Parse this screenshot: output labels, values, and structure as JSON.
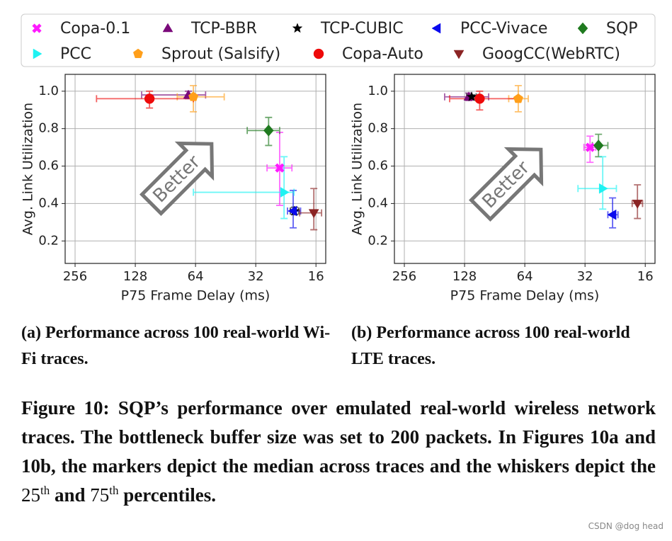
{
  "legend": [
    {
      "name": "Copa-0.1",
      "color": "#ff1aff",
      "marker": "X"
    },
    {
      "name": "TCP-BBR",
      "color": "#7a0a7a",
      "marker": "^"
    },
    {
      "name": "TCP-CUBIC",
      "color": "#000000",
      "marker": "*"
    },
    {
      "name": "PCC-Vivace",
      "color": "#0a0aee",
      "marker": "<"
    },
    {
      "name": "SQP",
      "color": "#1f7a1f",
      "marker": "D"
    },
    {
      "name": "PCC",
      "color": "#1ff2f2",
      "marker": ">"
    },
    {
      "name": "Sprout (Salsify)",
      "color": "#ff9f1a",
      "marker": "p"
    },
    {
      "name": "Copa-Auto",
      "color": "#ee0a0a",
      "marker": "o"
    },
    {
      "name": "GoogCC(WebRTC)",
      "color": "#8b2424",
      "marker": "v"
    }
  ],
  "chart_data": [
    {
      "type": "scatter",
      "xlabel": "P75 Frame Delay (ms)",
      "ylabel": "Avg. Link Utilization",
      "annotation": "Better",
      "subcaption": "(a) Performance across 100 real-world Wi-Fi traces.",
      "xscale": "log2",
      "xlim": [
        287,
        14.3
      ],
      "xticks": [
        256,
        128,
        64,
        32,
        16
      ],
      "ylim": [
        0.08,
        1.09
      ],
      "yticks": [
        0.2,
        0.4,
        0.6,
        0.8,
        {
          "value": 1,
          "label": "1.0"
        }
      ],
      "grid": true,
      "series": [
        {
          "x": 24.3,
          "xerr": [
            28.1,
            21.1
          ],
          "y": 0.59,
          "yerr": [
            0.39,
            0.78
          ]
        },
        {
          "x": 69.5,
          "xerr": [
            119,
            57
          ],
          "y": 0.98,
          "yerr": [
            0.96,
            1.0
          ]
        },
        {
          "x": 20.5,
          "xerr": [
            21.5,
            19.5
          ],
          "y": 0.36,
          "yerr": [
            0.34,
            0.38
          ]
        },
        {
          "x": 20.8,
          "xerr": [
            22.2,
            19.1
          ],
          "y": 0.36,
          "yerr": [
            0.27,
            0.47
          ]
        },
        {
          "x": 27.6,
          "xerr": [
            35.3,
            24.3
          ],
          "y": 0.79,
          "yerr": [
            0.71,
            0.86
          ]
        },
        {
          "x": 23.1,
          "xerr": [
            65.6,
            20.6
          ],
          "y": 0.46,
          "yerr": [
            0.32,
            0.65
          ]
        },
        {
          "x": 65.6,
          "xerr": [
            79,
            46
          ],
          "y": 0.97,
          "yerr": [
            0.89,
            1.03
          ]
        },
        {
          "x": 108.7,
          "xerr": [
            200,
            65.6
          ],
          "y": 0.96,
          "yerr": [
            0.91,
            1.0
          ]
        },
        {
          "x": 16.4,
          "xerr": [
            19.3,
            15.0
          ],
          "y": 0.35,
          "yerr": [
            0.26,
            0.48
          ]
        }
      ]
    },
    {
      "type": "scatter",
      "xlabel": "P75 Frame Delay (ms)",
      "ylabel": "Avg. Link Utilization",
      "annotation": "Better",
      "subcaption": "(b) Performance across 100 real-world LTE traces.",
      "xscale": "log2",
      "xlim": [
        287,
        14.3
      ],
      "xticks": [
        256,
        128,
        64,
        32,
        16
      ],
      "ylim": [
        0.08,
        1.09
      ],
      "yticks": [
        0.2,
        0.4,
        0.6,
        0.8,
        {
          "value": 1,
          "label": "1.0"
        }
      ],
      "grid": true,
      "series": [
        {
          "x": 30.2,
          "xerr": [
            32.4,
            28.3
          ],
          "y": 0.7,
          "yerr": [
            0.62,
            0.76
          ]
        },
        {
          "x": 122,
          "xerr": [
            161,
            97
          ],
          "y": 0.97,
          "yerr": [
            0.95,
            0.99
          ]
        },
        {
          "x": 118,
          "xerr": [
            125,
            112
          ],
          "y": 0.97,
          "yerr": [
            0.96,
            0.98
          ]
        },
        {
          "x": 23.3,
          "xerr": [
            24.6,
            21.9
          ],
          "y": 0.34,
          "yerr": [
            0.27,
            0.43
          ]
        },
        {
          "x": 27.4,
          "xerr": [
            29.4,
            24.6
          ],
          "y": 0.71,
          "yerr": [
            0.65,
            0.77
          ]
        },
        {
          "x": 26.1,
          "xerr": [
            34.7,
            22.3
          ],
          "y": 0.48,
          "yerr": [
            0.37,
            0.65
          ]
        },
        {
          "x": 69,
          "xerr": [
            77,
            61.5
          ],
          "y": 0.96,
          "yerr": [
            0.89,
            1.03
          ]
        },
        {
          "x": 107.6,
          "xerr": [
            152,
            70
          ],
          "y": 0.96,
          "yerr": [
            0.9,
            1.0
          ]
        },
        {
          "x": 17.5,
          "xerr": [
            18.6,
            16.5
          ],
          "y": 0.4,
          "yerr": [
            0.32,
            0.5
          ]
        }
      ]
    }
  ],
  "caption": [
    {
      "text": "Figure 10: SQP’s performance over emulated real-world wireless network traces. The bottleneck buffer size was set to 200 packets. In Figures 10a and 10b, the markers depict the median across traces and the whiskers depict the "
    },
    {
      "num": "25"
    },
    {
      "sup": "th"
    },
    {
      "text": " and "
    },
    {
      "num": "75"
    },
    {
      "sup": "th"
    },
    {
      "text": " percentiles."
    }
  ],
  "watermark": "CSDN @dog head"
}
